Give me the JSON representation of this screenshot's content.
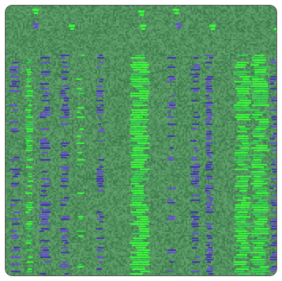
{
  "palette": {
    "background": "#4f8f5c",
    "noise_light": "#5fa06a",
    "noise_dark": "#3f7d4f",
    "bright_green": "#36ff36",
    "mid_green": "#2fd84a",
    "violet": "#6a4bd6",
    "deep_violet": "#4a2fb8",
    "frame_border": "#5a5a5a"
  },
  "stripes": [
    {
      "kind": "violet",
      "density": 0.35
    },
    {
      "kind": "green",
      "density": 0.55
    },
    {
      "kind": "violet",
      "density": 0.5
    },
    {
      "kind": "violet",
      "density": 0.55
    },
    {
      "kind": "green",
      "density": 0.25
    },
    {
      "kind": "violet",
      "density": 0.45
    },
    {
      "kind": "green",
      "density": 0.95
    },
    {
      "kind": "violet",
      "density": 0.3
    },
    {
      "kind": "violet",
      "density": 0.5
    },
    {
      "kind": "violet",
      "density": 0.75
    },
    {
      "kind": "green",
      "density": 0.9
    },
    {
      "kind": "green",
      "density": 0.95
    },
    {
      "kind": "violet",
      "density": 0.6
    }
  ]
}
